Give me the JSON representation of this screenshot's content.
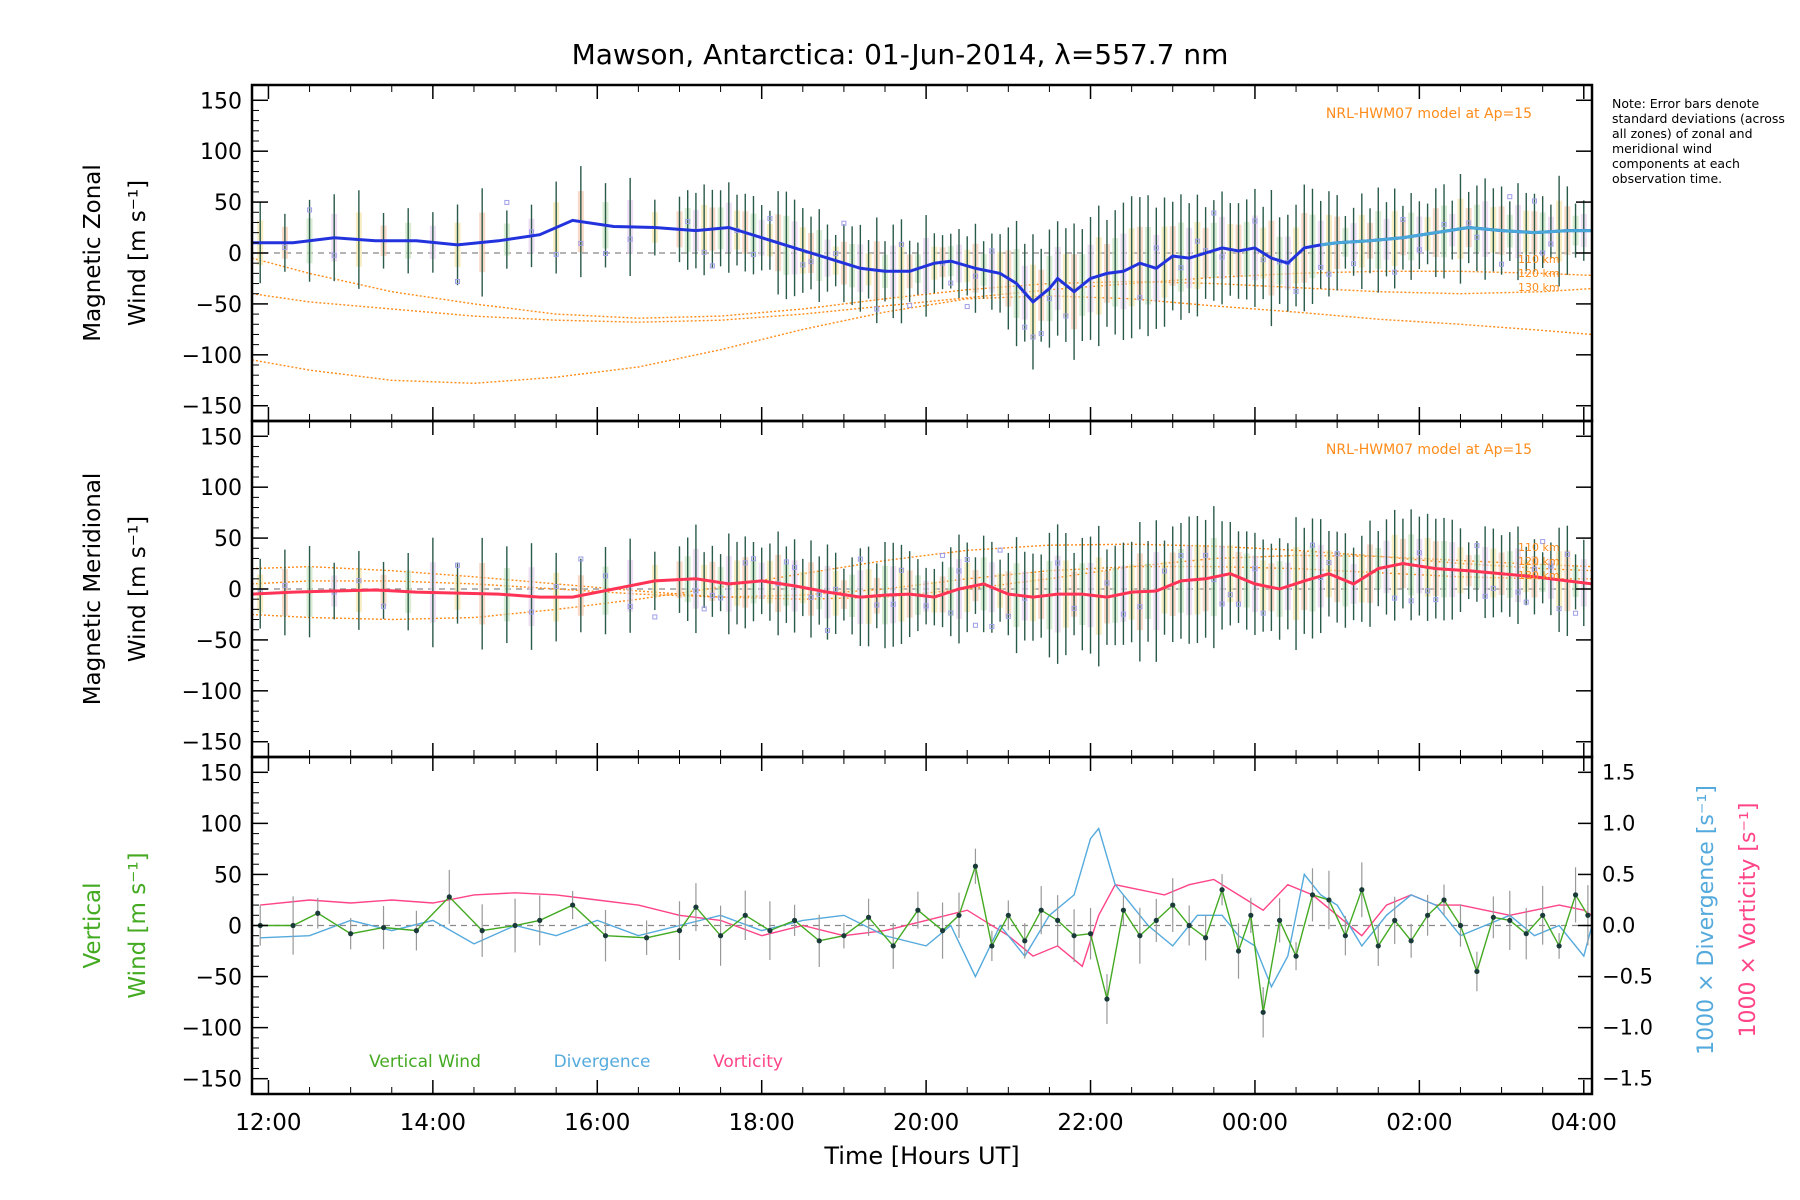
{
  "title": "Mawson, Antarctica: 01-Jun-2014, λ=557.7 nm",
  "note": "Note: Error bars denote standard deviations (across all zones) of zonal and meridional wind components at each observation time.",
  "colors": {
    "zonal": "#2233dd",
    "zonal_late": "#4aa8d8",
    "meridional": "#ff3355",
    "vertical": "#44aa22",
    "divergence": "#55aadd",
    "vorticity": "#ff4488",
    "model": "#ff8c1a",
    "errorbar": "#2a5a4a",
    "scatter": "#9f9fe8"
  },
  "x_axis": {
    "label": "Time [Hours UT]",
    "range_hours": [
      11.8,
      28.1
    ],
    "ticks": [
      {
        "hour": 12,
        "label": "12:00"
      },
      {
        "hour": 14,
        "label": "14:00"
      },
      {
        "hour": 16,
        "label": "16:00"
      },
      {
        "hour": 18,
        "label": "18:00"
      },
      {
        "hour": 20,
        "label": "20:00"
      },
      {
        "hour": 22,
        "label": "22:00"
      },
      {
        "hour": 24,
        "label": "00:00"
      },
      {
        "hour": 26,
        "label": "02:00"
      },
      {
        "hour": 28,
        "label": "04:00"
      }
    ]
  },
  "chart_data": [
    {
      "type": "line",
      "panel": "zonal",
      "ylabel_line1": "Magnetic Zonal",
      "ylabel_line2": "Wind [m s⁻¹]",
      "ylim": [
        -165,
        165
      ],
      "yticks": [
        -150,
        -100,
        -50,
        0,
        50,
        100,
        150
      ],
      "model_label": "NRL-HWM07 model at Ap=15",
      "model_alt_labels": [
        "110 km",
        "120 km",
        "130 km"
      ],
      "series": [
        {
          "role": "mean",
          "x": [
            11.8,
            12.3,
            12.8,
            13.3,
            13.8,
            14.3,
            14.8,
            15.3,
            15.7,
            16.2,
            16.7,
            17.2,
            17.6,
            18.0,
            18.4,
            18.8,
            19.2,
            19.5,
            19.8,
            20.1,
            20.3,
            20.6,
            20.9,
            21.1,
            21.3,
            21.5,
            21.6,
            21.8,
            22.0,
            22.2,
            22.4,
            22.6,
            22.8,
            23.0,
            23.2,
            23.4,
            23.6,
            23.8,
            24.0,
            24.2,
            24.4,
            24.6,
            24.8,
            25.0,
            25.4,
            25.8,
            26.2,
            26.6,
            27.0,
            27.4,
            27.8,
            28.1
          ],
          "y": [
            10,
            10,
            15,
            12,
            12,
            8,
            12,
            18,
            32,
            26,
            25,
            22,
            25,
            15,
            5,
            -5,
            -15,
            -18,
            -18,
            -10,
            -8,
            -15,
            -20,
            -30,
            -48,
            -35,
            -25,
            -38,
            -25,
            -20,
            -18,
            -10,
            -15,
            -3,
            -5,
            0,
            5,
            2,
            5,
            -5,
            -10,
            5,
            8,
            10,
            12,
            15,
            20,
            25,
            22,
            20,
            22,
            22
          ]
        },
        {
          "role": "model",
          "x": [
            11.8,
            12.5,
            13.5,
            14.5,
            15.5,
            16.5,
            17.5,
            18.5,
            19.5,
            20.5,
            21.5,
            22.5,
            23.5,
            24.5,
            25.5,
            26.5,
            27.5,
            28.1
          ],
          "y": [
            -105,
            -115,
            -125,
            -128,
            -122,
            -112,
            -95,
            -75,
            -58,
            -45,
            -42,
            -45,
            -52,
            -58,
            -65,
            -70,
            -76,
            -80
          ]
        },
        {
          "role": "model",
          "x": [
            11.8,
            12.5,
            13.5,
            14.5,
            15.5,
            16.5,
            17.5,
            18.5,
            19.5,
            20.5,
            21.5,
            22.5,
            23.5,
            24.5,
            25.5,
            26.5,
            27.5,
            28.1
          ],
          "y": [
            -5,
            -20,
            -38,
            -50,
            -60,
            -64,
            -62,
            -55,
            -45,
            -36,
            -30,
            -28,
            -30,
            -34,
            -38,
            -40,
            -38,
            -35
          ]
        },
        {
          "role": "model",
          "x": [
            11.8,
            12.5,
            13.5,
            14.5,
            15.5,
            16.5,
            17.5,
            18.5,
            19.5,
            20.5,
            21.5,
            22.5,
            23.5,
            24.5,
            25.5,
            26.5,
            27.5,
            28.1
          ],
          "y": [
            -40,
            -48,
            -55,
            -62,
            -66,
            -68,
            -66,
            -60,
            -52,
            -44,
            -36,
            -30,
            -24,
            -20,
            -18,
            -18,
            -20,
            -22
          ]
        }
      ]
    },
    {
      "type": "line",
      "panel": "meridional",
      "ylabel_line1": "Magnetic Meridional",
      "ylabel_line2": "Wind [m s⁻¹]",
      "ylim": [
        -165,
        165
      ],
      "yticks": [
        -150,
        -100,
        -50,
        0,
        50,
        100,
        150
      ],
      "model_label": "NRL-HWM07 model at Ap=15",
      "model_alt_labels": [
        "110 km",
        "120 km",
        "130 km"
      ],
      "series": [
        {
          "role": "mean",
          "x": [
            11.8,
            12.3,
            12.8,
            13.3,
            13.8,
            14.3,
            14.8,
            15.3,
            15.7,
            16.2,
            16.7,
            17.2,
            17.6,
            18.0,
            18.4,
            18.8,
            19.2,
            19.5,
            19.8,
            20.1,
            20.4,
            20.7,
            21.0,
            21.3,
            21.6,
            21.9,
            22.2,
            22.5,
            22.8,
            23.1,
            23.4,
            23.7,
            24.0,
            24.3,
            24.6,
            24.9,
            25.2,
            25.5,
            25.8,
            26.2,
            26.6,
            27.0,
            27.4,
            27.8,
            28.1
          ],
          "y": [
            -5,
            -3,
            -2,
            -1,
            -3,
            -4,
            -5,
            -8,
            -8,
            0,
            8,
            10,
            5,
            8,
            3,
            -3,
            -8,
            -6,
            -5,
            -8,
            0,
            5,
            -5,
            -8,
            -5,
            -5,
            -8,
            -3,
            -2,
            8,
            10,
            15,
            5,
            0,
            8,
            15,
            5,
            20,
            25,
            20,
            18,
            15,
            12,
            8,
            5
          ]
        },
        {
          "role": "model",
          "x": [
            11.8,
            12.5,
            13.5,
            14.5,
            15.5,
            16.5,
            17.5,
            18.5,
            19.5,
            20.5,
            21.5,
            22.5,
            23.5,
            24.5,
            25.5,
            26.5,
            27.5,
            28.1
          ],
          "y": [
            20,
            22,
            18,
            12,
            5,
            -2,
            -8,
            -10,
            -8,
            0,
            10,
            22,
            30,
            33,
            32,
            28,
            24,
            22
          ]
        },
        {
          "role": "model",
          "x": [
            11.8,
            12.5,
            13.5,
            14.5,
            15.5,
            16.5,
            17.5,
            18.5,
            19.5,
            20.5,
            21.5,
            22.5,
            23.5,
            24.5,
            25.5,
            26.5,
            27.5,
            28.1
          ],
          "y": [
            -25,
            -28,
            -30,
            -28,
            -20,
            -10,
            2,
            15,
            28,
            38,
            43,
            44,
            42,
            38,
            32,
            25,
            20,
            18
          ]
        },
        {
          "role": "model",
          "x": [
            11.8,
            12.5,
            13.5,
            14.5,
            15.5,
            16.5,
            17.5,
            18.5,
            19.5,
            20.5,
            21.5,
            22.5,
            23.5,
            24.5,
            25.5,
            26.5,
            27.5,
            28.1
          ],
          "y": [
            5,
            8,
            8,
            5,
            0,
            -5,
            -8,
            -6,
            0,
            10,
            18,
            22,
            22,
            20,
            16,
            12,
            10,
            10
          ]
        }
      ]
    },
    {
      "type": "line",
      "panel": "vertical",
      "ylabel_line1": "Vertical",
      "ylabel_line2": "Wind [m s⁻¹]",
      "ylim": [
        -165,
        165
      ],
      "yticks": [
        -150,
        -100,
        -50,
        0,
        50,
        100,
        150
      ],
      "y2_ticks": [
        -1.5,
        -1.0,
        -0.5,
        0.0,
        0.5,
        1.0,
        1.5
      ],
      "y2_tick_labels": [
        "−1.5",
        "−1.0",
        "−0.5",
        "0.0",
        "0.5",
        "1.0",
        "1.5"
      ],
      "y2_label_div": "1000 × Divergence [s⁻¹]",
      "y2_label_vort": "1000 × Vorticity [s⁻¹]",
      "legend": [
        "Vertical Wind",
        "Divergence",
        "Vorticity"
      ],
      "series": [
        {
          "name": "Vertical Wind",
          "x": [
            11.9,
            12.3,
            12.6,
            13.0,
            13.4,
            13.8,
            14.2,
            14.6,
            15.0,
            15.3,
            15.7,
            16.1,
            16.6,
            17.0,
            17.2,
            17.5,
            17.8,
            18.1,
            18.4,
            18.7,
            19.0,
            19.3,
            19.6,
            19.9,
            20.2,
            20.4,
            20.6,
            20.8,
            21.0,
            21.2,
            21.4,
            21.6,
            21.8,
            22.0,
            22.2,
            22.4,
            22.6,
            22.8,
            23.0,
            23.2,
            23.4,
            23.6,
            23.8,
            23.95,
            24.1,
            24.3,
            24.5,
            24.7,
            24.9,
            25.1,
            25.3,
            25.5,
            25.7,
            25.9,
            26.1,
            26.3,
            26.5,
            26.7,
            26.9,
            27.1,
            27.3,
            27.5,
            27.7,
            27.9,
            28.05
          ],
          "y": [
            0,
            0,
            12,
            -8,
            -2,
            -5,
            28,
            -5,
            0,
            5,
            20,
            -10,
            -12,
            -5,
            18,
            -10,
            10,
            -5,
            5,
            -15,
            -10,
            8,
            -20,
            15,
            -5,
            10,
            58,
            -20,
            10,
            -15,
            15,
            5,
            -10,
            -8,
            -72,
            15,
            -10,
            5,
            20,
            0,
            -12,
            35,
            -25,
            10,
            -85,
            5,
            -30,
            30,
            25,
            -10,
            35,
            -20,
            5,
            -15,
            10,
            25,
            0,
            -45,
            8,
            5,
            -8,
            10,
            -20,
            30,
            10
          ]
        },
        {
          "name": "Divergence",
          "x": [
            11.9,
            12.5,
            13.0,
            13.5,
            14.0,
            14.5,
            15.0,
            15.5,
            16.0,
            16.5,
            17.0,
            17.5,
            18.0,
            18.5,
            19.0,
            19.5,
            20.0,
            20.3,
            20.6,
            20.9,
            21.2,
            21.5,
            21.8,
            22.0,
            22.1,
            22.3,
            22.5,
            22.7,
            23.0,
            23.3,
            23.6,
            23.8,
            24.0,
            24.2,
            24.4,
            24.6,
            24.8,
            25.0,
            25.3,
            25.6,
            25.9,
            26.2,
            26.5,
            26.8,
            27.1,
            27.4,
            27.7,
            28.0,
            28.1
          ],
          "y": [
            -0.12,
            -0.1,
            0.05,
            -0.05,
            0.05,
            -0.18,
            0.0,
            -0.1,
            0.05,
            -0.1,
            0.0,
            0.1,
            -0.05,
            0.05,
            0.1,
            -0.1,
            -0.2,
            0.0,
            -0.5,
            0.0,
            -0.3,
            0.1,
            0.3,
            0.85,
            0.95,
            0.4,
            0.2,
            0.0,
            -0.2,
            0.1,
            0.1,
            -0.1,
            -0.2,
            -0.6,
            -0.3,
            0.5,
            0.3,
            0.2,
            -0.2,
            0.1,
            0.3,
            0.2,
            -0.1,
            0.0,
            0.1,
            -0.1,
            0.0,
            -0.3,
            0.0
          ]
        },
        {
          "name": "Vorticity",
          "x": [
            11.9,
            12.5,
            13.0,
            13.5,
            14.0,
            14.5,
            15.0,
            15.5,
            16.0,
            16.5,
            17.0,
            17.5,
            18.0,
            18.5,
            19.0,
            19.5,
            20.0,
            20.5,
            21.0,
            21.3,
            21.6,
            21.9,
            22.1,
            22.3,
            22.6,
            22.9,
            23.2,
            23.5,
            23.8,
            24.1,
            24.4,
            24.7,
            25.0,
            25.3,
            25.6,
            25.9,
            26.2,
            26.5,
            26.8,
            27.1,
            27.4,
            27.7,
            28.0,
            28.1
          ],
          "y": [
            0.2,
            0.25,
            0.22,
            0.25,
            0.22,
            0.3,
            0.32,
            0.3,
            0.25,
            0.2,
            0.1,
            0.05,
            -0.1,
            0.0,
            -0.1,
            -0.05,
            0.05,
            0.15,
            -0.1,
            -0.3,
            -0.2,
            -0.4,
            0.1,
            0.4,
            0.35,
            0.3,
            0.4,
            0.45,
            0.3,
            0.15,
            0.4,
            0.3,
            0.1,
            -0.1,
            0.2,
            0.3,
            0.2,
            0.2,
            0.15,
            0.1,
            0.15,
            0.2,
            0.15,
            0.1
          ]
        }
      ]
    }
  ]
}
